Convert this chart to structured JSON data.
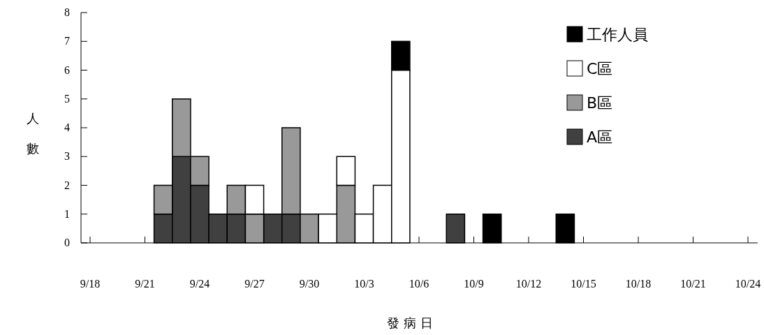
{
  "chart_data": {
    "type": "bar",
    "stacked": true,
    "xlabel": "發 病 日",
    "ylabel": "人數",
    "legend": "top right",
    "x": [
      "--09-22",
      "--09-23",
      "--09-24",
      "--09-25",
      "--09-26",
      "--09-27",
      "--09-28",
      "--09-29",
      "--09-30",
      "--10-01",
      "--10-02",
      "--10-03",
      "--10-04",
      "--10-05",
      "--10-08",
      "--10-10",
      "--10-14"
    ],
    "xlim": [
      "--09-18",
      "--10-24"
    ],
    "xticks": [
      {
        "value": "--09-18",
        "label": "9/18"
      },
      {
        "value": "--09-21",
        "label": "9/21"
      },
      {
        "value": "--09-24",
        "label": "9/24"
      },
      {
        "value": "--09-27",
        "label": "9/27"
      },
      {
        "value": "--09-30",
        "label": "9/30"
      },
      {
        "value": "--10-03",
        "label": "10/3"
      },
      {
        "value": "--10-06",
        "label": "10/6"
      },
      {
        "value": "--10-09",
        "label": "10/9"
      },
      {
        "value": "--10-12",
        "label": "10/12"
      },
      {
        "value": "--10-15",
        "label": "10/15"
      },
      {
        "value": "--10-18",
        "label": "10/18"
      },
      {
        "value": "--10-21",
        "label": "10/21"
      },
      {
        "value": "--10-24",
        "label": "10/24"
      }
    ],
    "ylim": [
      0,
      8
    ],
    "yticks": [
      0,
      1,
      2,
      3,
      4,
      5,
      6,
      7,
      8
    ],
    "series": [
      {
        "name": "A區",
        "color": "#404040",
        "values": [
          1,
          3,
          2,
          1,
          1,
          0,
          1,
          1,
          0,
          0,
          0,
          0,
          0,
          0,
          1,
          0,
          0
        ]
      },
      {
        "name": "B區",
        "color": "#999999",
        "values": [
          1,
          2,
          1,
          0,
          1,
          1,
          0,
          3,
          1,
          0,
          2,
          0,
          0,
          0,
          0,
          0,
          0
        ]
      },
      {
        "name": "C區",
        "color": "#ffffff",
        "values": [
          0,
          0,
          0,
          0,
          0,
          1,
          0,
          0,
          0,
          1,
          1,
          1,
          2,
          6,
          0,
          0,
          0
        ]
      },
      {
        "name": "工作人員",
        "color": "#000000",
        "values": [
          0,
          0,
          0,
          0,
          0,
          0,
          0,
          0,
          0,
          0,
          0,
          0,
          0,
          1,
          0,
          1,
          1
        ]
      }
    ]
  }
}
